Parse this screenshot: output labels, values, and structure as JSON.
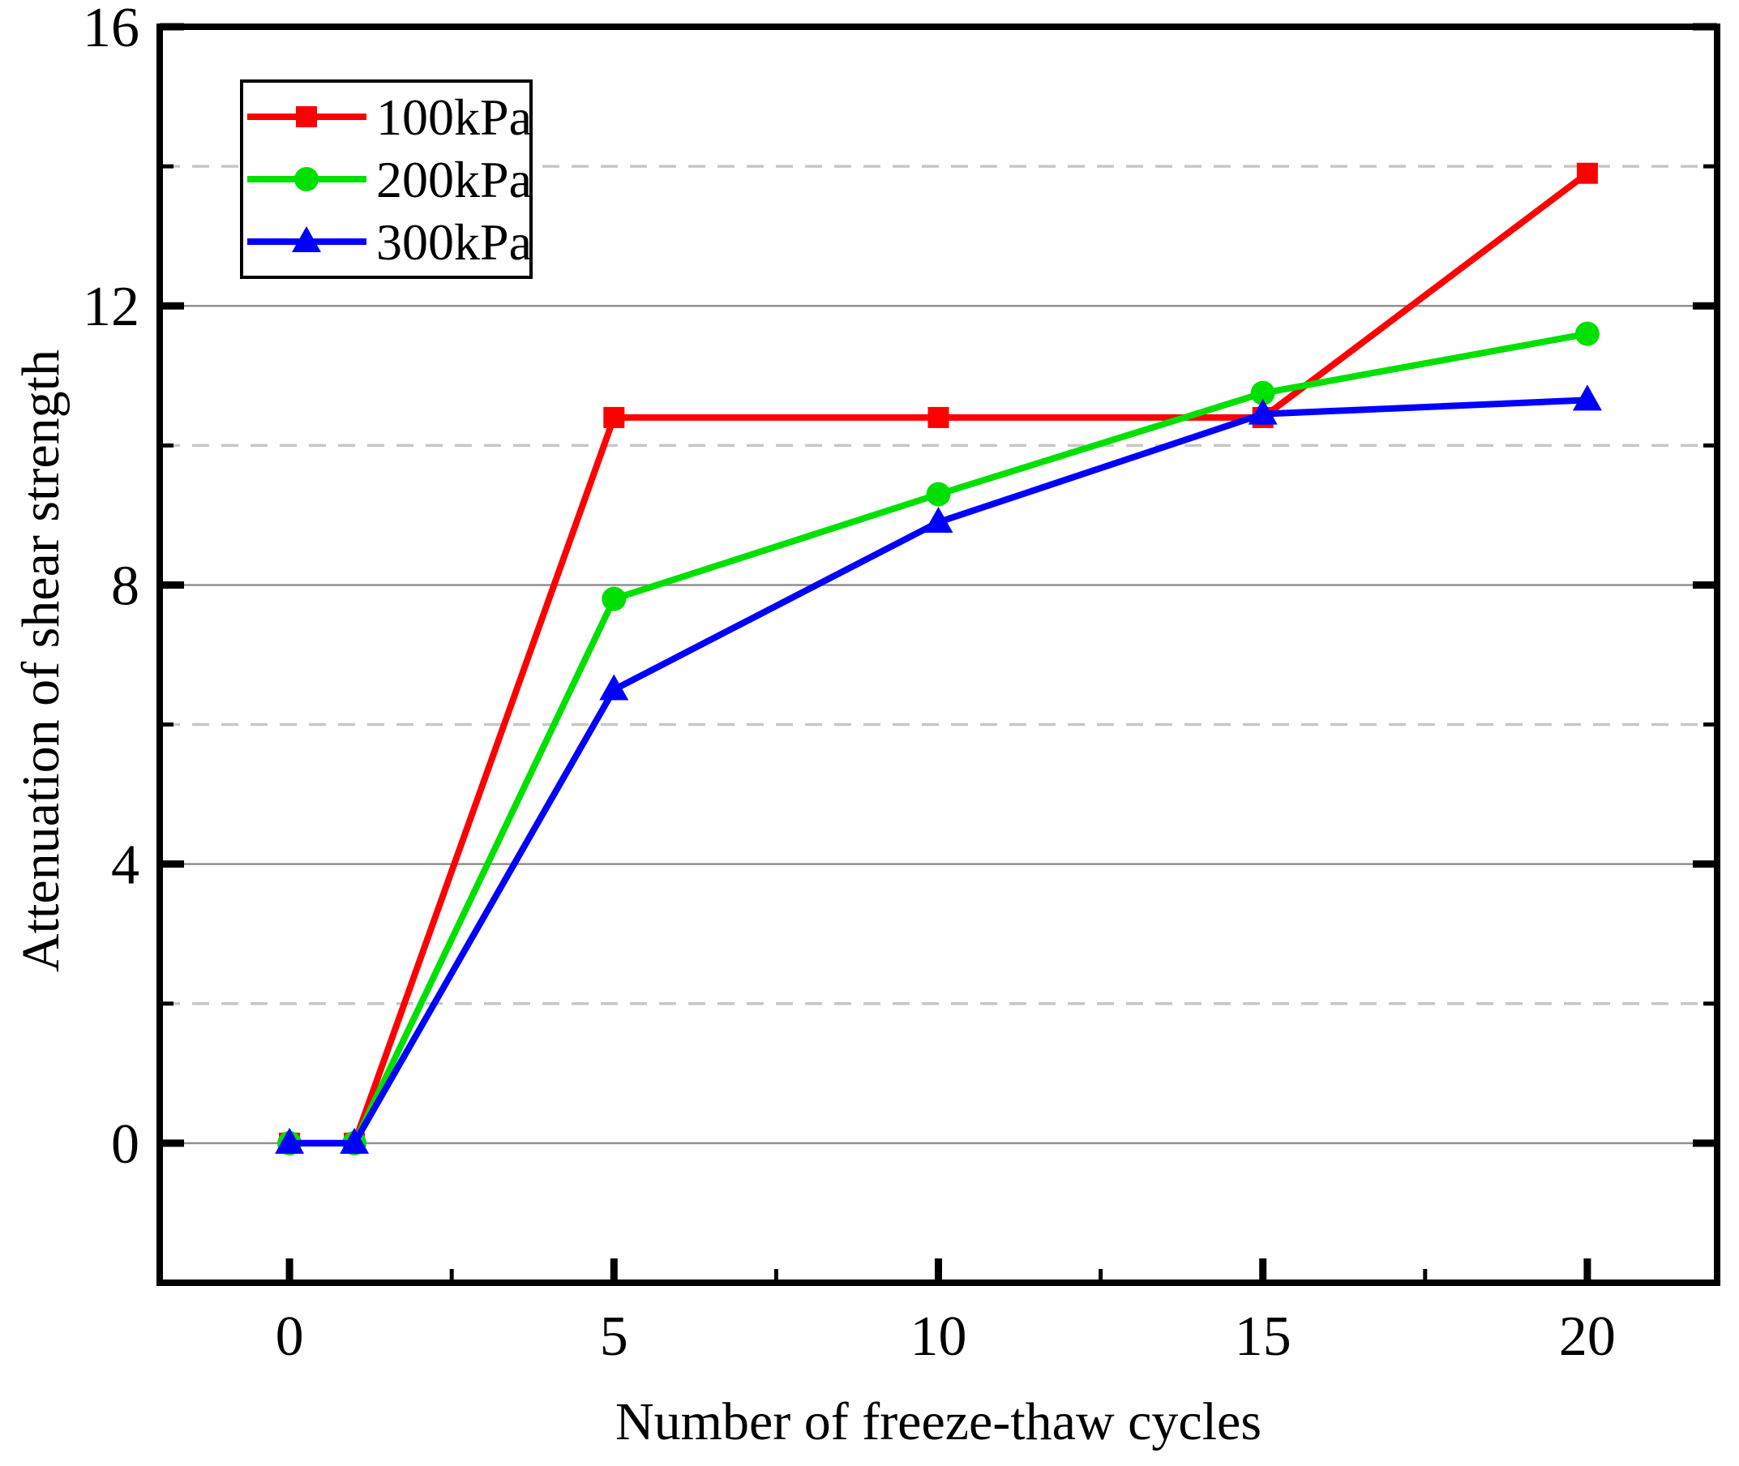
{
  "chart_data": {
    "type": "line",
    "title": "",
    "xlabel": "Number of freeze-thaw cycles",
    "ylabel": "Attenuation of shear strength",
    "x": [
      0,
      1,
      5,
      10,
      15,
      20
    ],
    "series": [
      {
        "name": "100kPa",
        "color": "#ff0000",
        "marker": "square",
        "values": [
          0,
          0,
          10.4,
          10.4,
          10.4,
          13.9
        ]
      },
      {
        "name": "200kPa",
        "color": "#00e000",
        "marker": "circle",
        "values": [
          0,
          0,
          7.8,
          9.3,
          10.75,
          11.6
        ]
      },
      {
        "name": "300kPa",
        "color": "#0000ff",
        "marker": "triangle",
        "values": [
          0,
          0,
          6.5,
          8.9,
          10.45,
          10.65
        ]
      }
    ],
    "xlim": [
      -2,
      22
    ],
    "ylim": [
      -2,
      16
    ],
    "x_major_ticks": [
      0,
      5,
      10,
      15,
      20
    ],
    "x_minor_ticks": [
      2.5,
      7.5,
      12.5,
      17.5
    ],
    "y_major_ticks": [
      0,
      4,
      8,
      12,
      16
    ],
    "y_minor_ticks": [
      2,
      6,
      10,
      14
    ],
    "grid": {
      "major_style": "solid",
      "major_color": "#909090",
      "minor_style": "dashed",
      "minor_color": "#c7c7c7",
      "vertical_grid": "off"
    },
    "frame_color": "#000000",
    "tick_direction": "in",
    "legend": {
      "position": "upper-left",
      "entries": [
        "100kPa",
        "200kPa",
        "300kPa"
      ]
    }
  }
}
